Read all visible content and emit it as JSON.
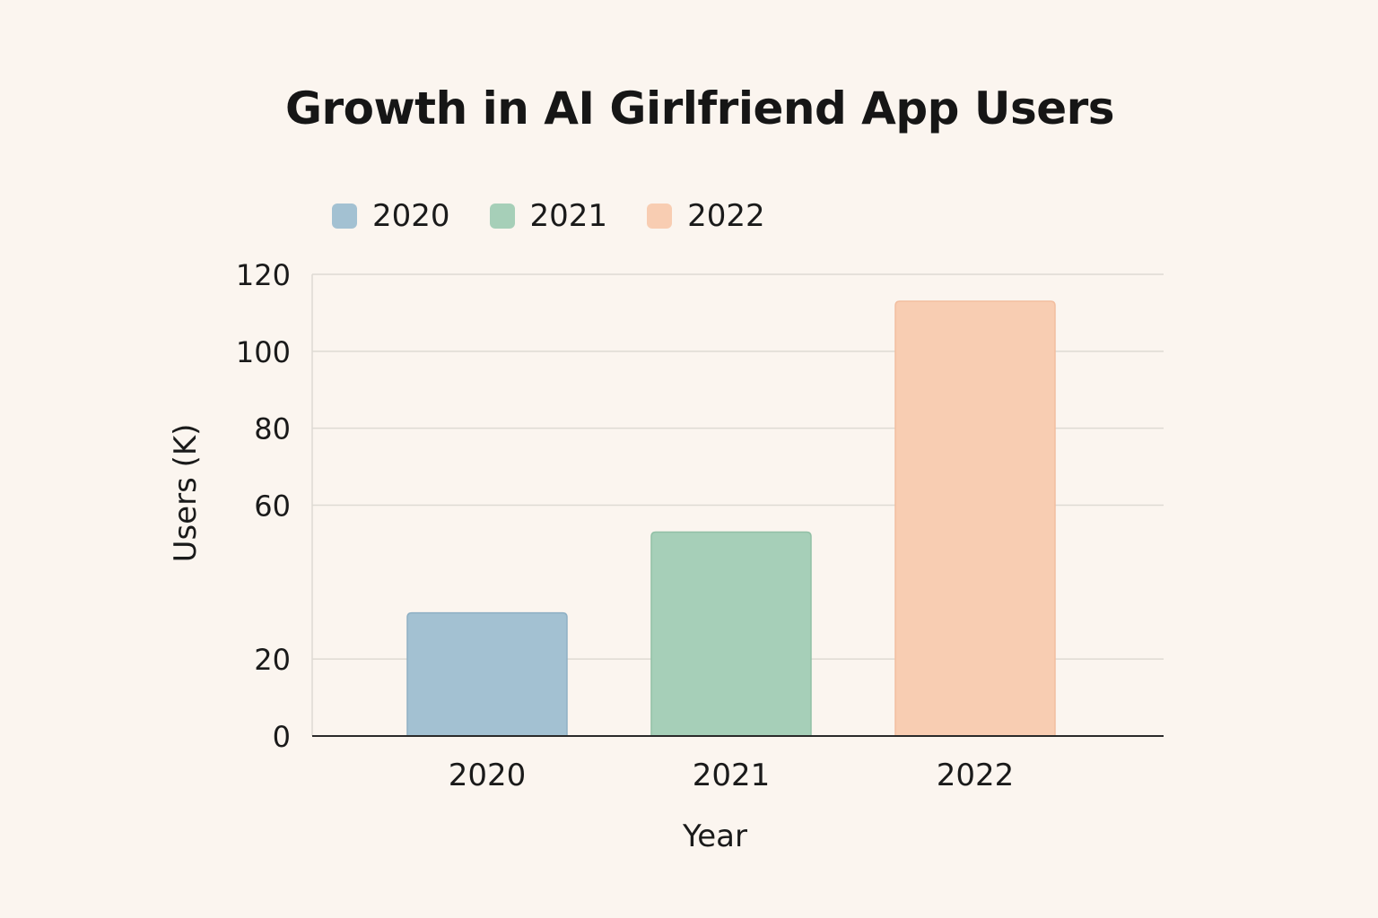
{
  "chart_data": {
    "type": "bar",
    "title": "Growth in AI Girlfriend App Users",
    "xlabel": "Year",
    "ylabel": "Users (K)",
    "categories": [
      "2020",
      "2021",
      "2022"
    ],
    "values": [
      32,
      53,
      113
    ],
    "colors": [
      "#a3c1d2",
      "#a6cfb8",
      "#f8cdb2"
    ],
    "border_colors": [
      "#8fb0c4",
      "#92c0a6",
      "#f2bea0"
    ],
    "ylim": [
      0,
      120
    ],
    "yticks": [
      0,
      20,
      60,
      80,
      100,
      120
    ],
    "ytick_labels": [
      "0",
      "20",
      "60",
      "80",
      "100",
      "120"
    ],
    "grid": true,
    "grid_color": "#dedad3",
    "axis_color": "#2a2a2a",
    "legend": {
      "position": "top-left",
      "entries": [
        {
          "label": "2020",
          "color": "#a3c1d2"
        },
        {
          "label": "2021",
          "color": "#a6cfb8"
        },
        {
          "label": "2022",
          "color": "#f8cdb2"
        }
      ]
    },
    "background": "#fbf5ef"
  }
}
